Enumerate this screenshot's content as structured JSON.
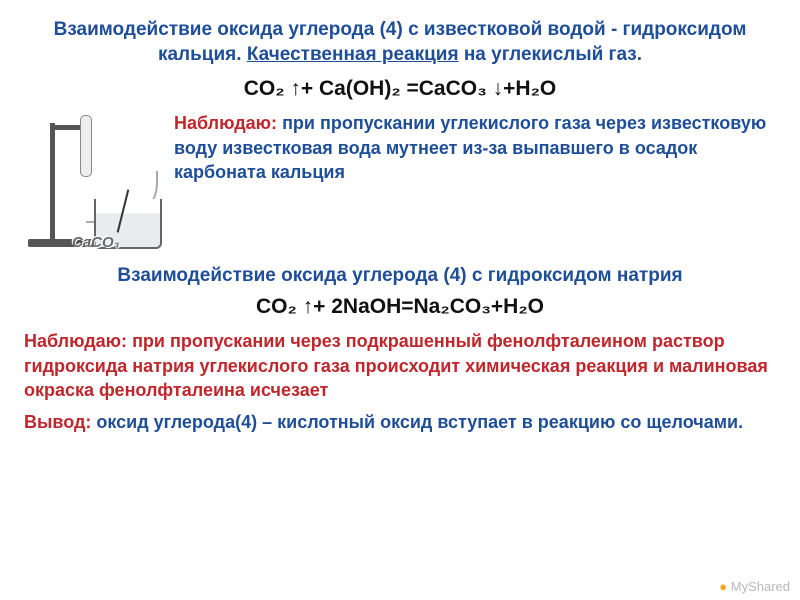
{
  "title1_a": "Взаимодействие оксида углерода (4) с известковой водой - гидроксидом кальция. ",
  "title1_b": "Качественная реакция",
  "title1_c": " на углекислый газ.",
  "eq1": "CO₂ ↑+ Ca(OH)₂ =CaCO₃ ↓+H₂O",
  "caco3": "CaCO₃",
  "obs1_lead": "Наблюдаю:",
  "obs1_body": " при пропускании углекислого газа через известковую воду известковая вода мутнеет из-за выпавшего в осадок карбоната кальция",
  "title2": "Взаимодействие оксида углерода (4) с гидроксидом натрия",
  "eq2": "CO₂ ↑+ 2NaOH=Na₂CO₃+H₂O",
  "obs2_lead": "Наблюдаю:",
  "obs2_body": " при пропускании через подкрашенный фенолфталеином раствор гидроксида натрия углекислого газа происходит химическая реакция и малиновая окраска фенолфталеина исчезает",
  "concl_lead": "Вывод:",
  "concl_body": " оксид углерода(4) – кислотный оксид вступает в реакцию со щелочами.",
  "watermark": "MyShared",
  "colors": {
    "blue": "#1f4e99",
    "red": "#c0272d",
    "gray": "#6a6a6a",
    "bg": "#ffffff"
  },
  "fontsizes": {
    "title": 19,
    "eq": 21,
    "body": 18,
    "caco3": 15
  }
}
